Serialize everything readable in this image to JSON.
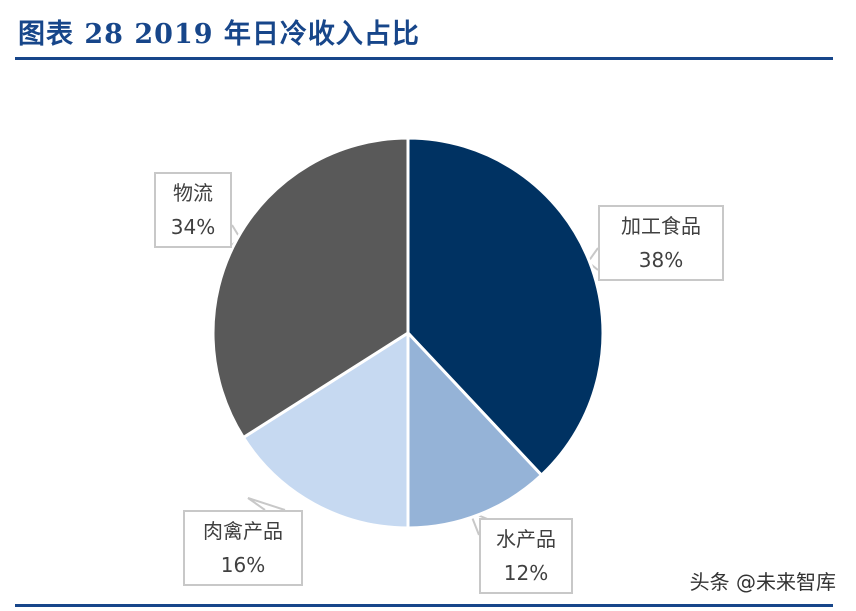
{
  "title": "图表 28   2019 年日冷收入占比",
  "watermark": "头条 @未来智库",
  "chart_data": {
    "type": "pie",
    "title": "",
    "start": "top, clockwise",
    "slices": [
      {
        "label": "加工食品",
        "value": 38,
        "value_label": "38%",
        "color": "#003262"
      },
      {
        "label": "水产品",
        "value": 12,
        "value_label": "12%",
        "color": "#95b3d7"
      },
      {
        "label": "肉禽产品",
        "value": 16,
        "value_label": "16%",
        "color": "#c6d9f1"
      },
      {
        "label": "物流",
        "value": 34,
        "value_label": "34%",
        "color": "#595959"
      }
    ],
    "legend": "none"
  }
}
